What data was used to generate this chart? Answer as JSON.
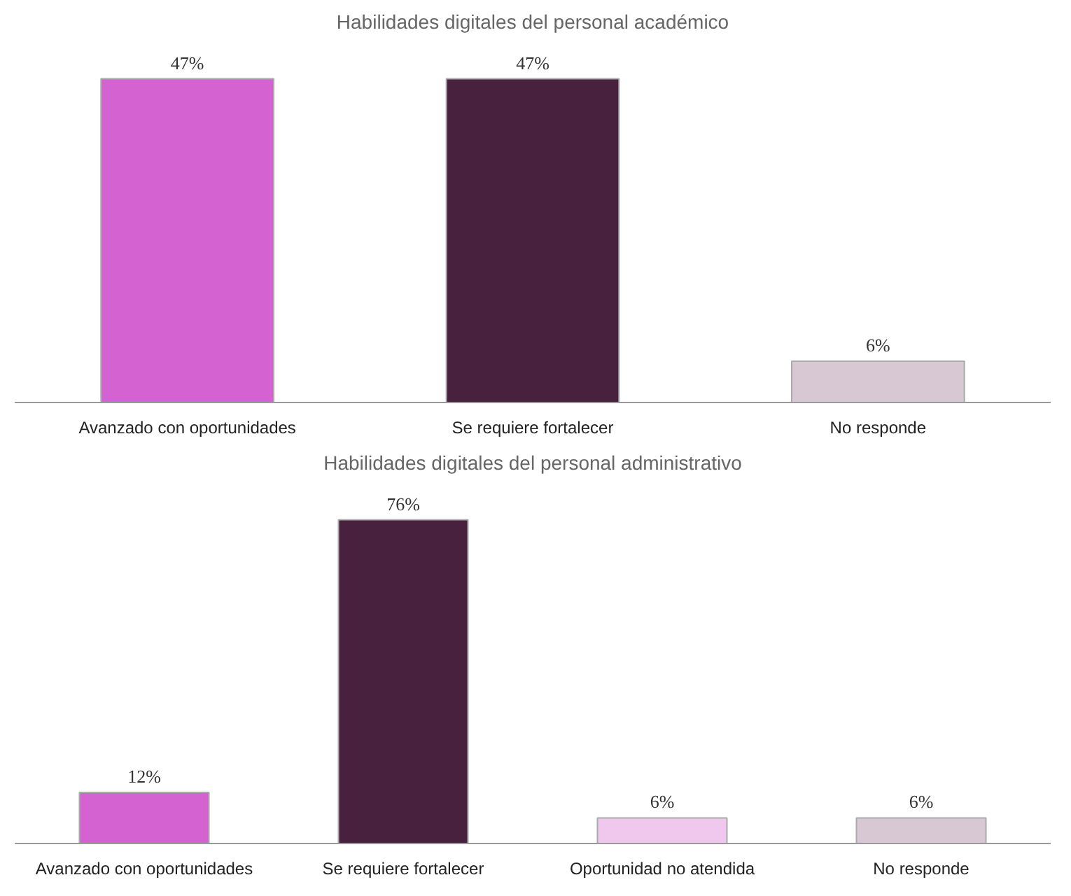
{
  "chart_data": [
    {
      "type": "bar",
      "title": "Habilidades digitales del personal académico",
      "categories": [
        "Avanzado con oportunidades",
        "Se requiere fortalecer",
        "No responde"
      ],
      "values": [
        47,
        47,
        6
      ],
      "value_labels": [
        "47%",
        "47%",
        "6%"
      ],
      "colors": [
        "#d462d0",
        "#48213f",
        "#d8c8d4"
      ]
    },
    {
      "type": "bar",
      "title": "Habilidades digitales del personal administrativo",
      "categories": [
        "Avanzado con oportunidades",
        "Se requiere fortalecer",
        "Oportunidad no atendida",
        "No responde"
      ],
      "values": [
        12,
        76,
        6,
        6
      ],
      "value_labels": [
        "12%",
        "76%",
        "6%",
        "6%"
      ],
      "colors": [
        "#d462d0",
        "#48213f",
        "#f0c8ee",
        "#d8c8d4"
      ]
    }
  ]
}
